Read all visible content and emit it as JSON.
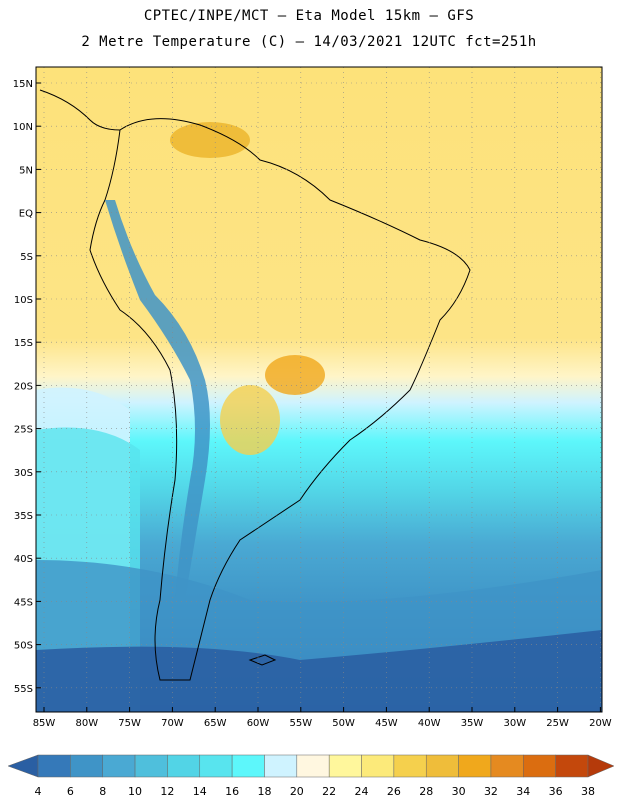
{
  "header": {
    "line1": "CPTEC/INPE/MCT —  Eta Model 15km — GFS",
    "line2": "2 Metre Temperature (C) — 14/03/2021 12UTC fct=251h"
  },
  "map": {
    "lat_labels": [
      "15N",
      "10N",
      "5N",
      "EQ",
      "5S",
      "10S",
      "15S",
      "20S",
      "25S",
      "30S",
      "35S",
      "40S",
      "45S",
      "50S",
      "55S"
    ],
    "lon_labels": [
      "85W",
      "80W",
      "75W",
      "70W",
      "65W",
      "60W",
      "55W",
      "50W",
      "45W",
      "40W",
      "35W",
      "30W",
      "25W",
      "20W"
    ],
    "lon_range": [
      -85,
      -20
    ],
    "lat_range": [
      -58,
      17
    ]
  },
  "colorbar": {
    "labels": [
      "4",
      "6",
      "8",
      "10",
      "12",
      "14",
      "16",
      "18",
      "20",
      "22",
      "24",
      "26",
      "28",
      "30",
      "32",
      "34",
      "36",
      "38"
    ],
    "colors": [
      "#2a5fa3",
      "#3579b9",
      "#3f94c7",
      "#4aa9d3",
      "#4fbfdc",
      "#52d4e6",
      "#58e4ee",
      "#5df7fb",
      "#cff3ff",
      "#fff7e0",
      "#fff79c",
      "#fcea7a",
      "#f5d04d",
      "#efbd3a",
      "#f0a81c",
      "#e58a20",
      "#db6d10",
      "#c4480c",
      "#b53a0a"
    ]
  }
}
